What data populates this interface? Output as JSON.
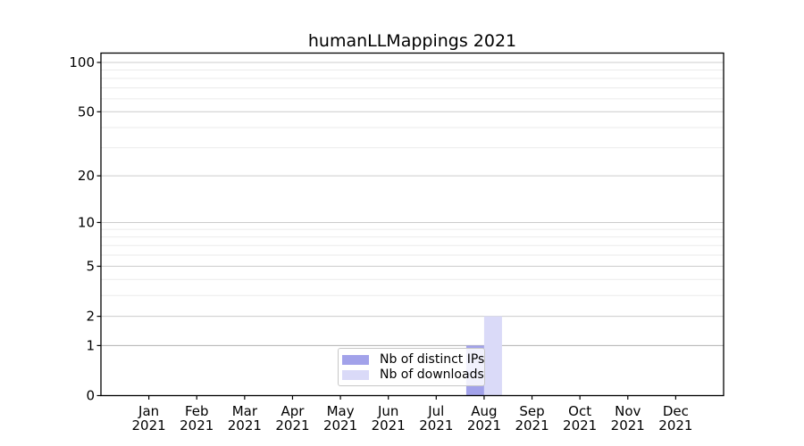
{
  "chart_data": {
    "type": "bar",
    "title": "humanLLMappings 2021",
    "categories": [
      "Jan",
      "Feb",
      "Mar",
      "Apr",
      "May",
      "Jun",
      "Jul",
      "Aug",
      "Sep",
      "Oct",
      "Nov",
      "Dec"
    ],
    "category_year": "2021",
    "series": [
      {
        "name": "Nb of distinct IPs",
        "color": "#a2a2ea",
        "values": [
          0,
          0,
          0,
          0,
          0,
          0,
          0,
          1,
          0,
          0,
          0,
          0
        ]
      },
      {
        "name": "Nb of downloads",
        "color": "#dadaf8",
        "values": [
          0,
          0,
          0,
          0,
          0,
          0,
          0,
          2,
          0,
          0,
          0,
          0
        ]
      }
    ],
    "xlabel": "",
    "ylabel": "",
    "yscale": "log1p",
    "ylim": [
      0,
      114
    ],
    "yticks": [
      0,
      1,
      2,
      5,
      10,
      20,
      50,
      100
    ],
    "minor_yticks": [
      3,
      4,
      6,
      7,
      8,
      9,
      30,
      40,
      60,
      70,
      80,
      90
    ],
    "grid": "on",
    "legend_position": "lower center",
    "colors": {
      "major_grid": "#cccccc",
      "unit_grid": "#b0b0b0",
      "minor_grid": "#ebebeb",
      "axis": "#000000",
      "text": "#000000"
    }
  }
}
